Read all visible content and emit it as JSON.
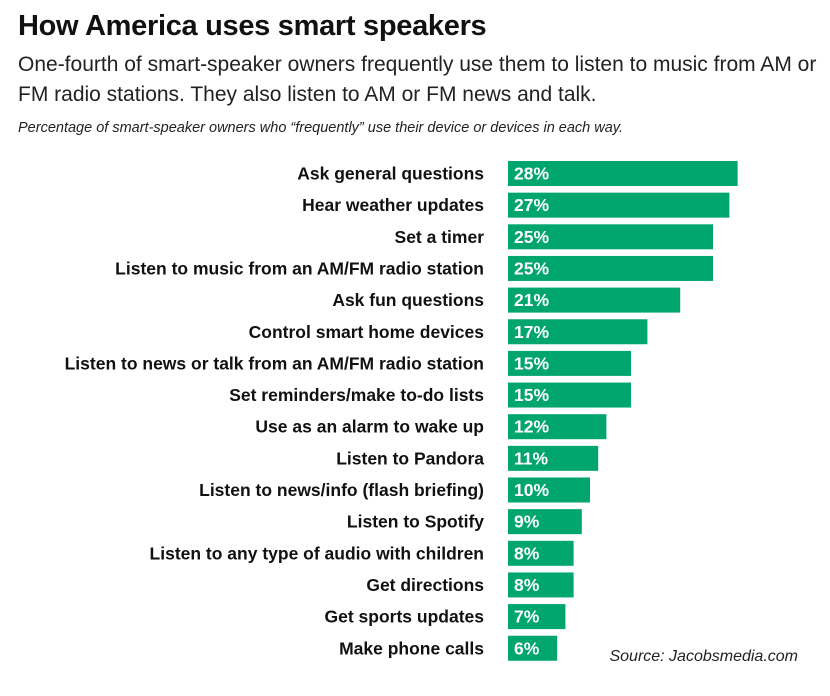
{
  "title": "How America uses smart speakers",
  "subtitle": "One-fourth of smart-speaker owners frequently use them to listen to music from AM or FM radio stations. They also listen to AM or FM news and talk.",
  "note": "Percentage of smart-speaker owners who “frequently” use their device or devices in each way.",
  "source": "Source: Jacobsmedia.com",
  "colors": {
    "bar": "#00a66e"
  },
  "chart_data": {
    "type": "bar",
    "orientation": "horizontal",
    "title": "How America uses smart speakers",
    "categories": [
      "Ask general questions",
      "Hear weather updates",
      "Set a timer",
      "Listen to music from an AM/FM radio station",
      "Ask fun questions",
      "Control smart home devices",
      "Listen to news or talk from an AM/FM radio station",
      "Set reminders/make to-do lists",
      "Use as an alarm to wake up",
      "Listen to Pandora",
      "Listen to news/info (flash briefing)",
      "Listen to Spotify",
      "Listen to any type of audio with children",
      "Get directions",
      "Get sports updates",
      "Make phone calls"
    ],
    "values": [
      28,
      27,
      25,
      25,
      21,
      17,
      15,
      15,
      12,
      11,
      10,
      9,
      8,
      8,
      7,
      6
    ],
    "value_labels": [
      "28%",
      "27%",
      "25%",
      "25%",
      "21%",
      "17%",
      "15%",
      "15%",
      "12%",
      "11%",
      "10%",
      "9%",
      "8%",
      "8%",
      "7%",
      "6%"
    ],
    "unit": "%",
    "grid": false,
    "legend": "none"
  }
}
